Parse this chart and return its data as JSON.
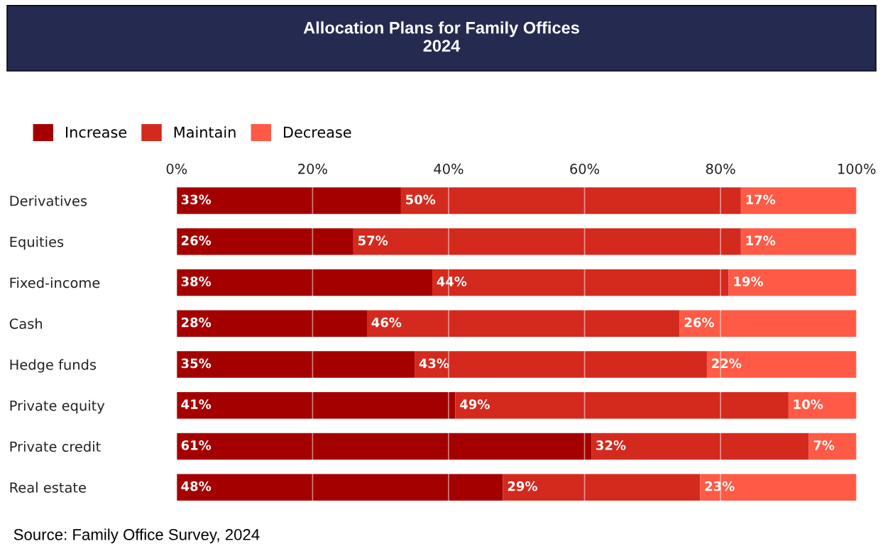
{
  "chart_data": {
    "type": "bar",
    "orientation": "horizontal",
    "stacked": true,
    "title": "Allocation Plans for Family Offices\n2024",
    "categories": [
      "Derivatives",
      "Equities",
      "Fixed-income",
      "Cash",
      "Hedge funds",
      "Private equity",
      "Private credit",
      "Real estate"
    ],
    "series": [
      {
        "name": "Increase",
        "color": "#a50000",
        "values": [
          33,
          26,
          37.6,
          28,
          35,
          41,
          61,
          48
        ],
        "value_labels": [
          "33%",
          "26%",
          "38%",
          "28%",
          "35%",
          "41%",
          "61%",
          "48%"
        ]
      },
      {
        "name": "Maintain",
        "color": "#d42a1e",
        "values": [
          50,
          57,
          43.6,
          46,
          43,
          49,
          32,
          29
        ],
        "value_labels": [
          "50%",
          "57%",
          "44%",
          "46%",
          "43%",
          "49%",
          "32%",
          "29%"
        ]
      },
      {
        "name": "Decrease",
        "color": "#ff5a45",
        "values": [
          17,
          17,
          18.8,
          26,
          22,
          10,
          7,
          23
        ],
        "value_labels": [
          "17%",
          "17%",
          "19%",
          "26%",
          "22%",
          "10%",
          "7%",
          "23%"
        ]
      }
    ],
    "xlim": [
      0,
      100
    ],
    "xticks": [
      {
        "value": 0,
        "label": "0%"
      },
      {
        "value": 20,
        "label": "20%"
      },
      {
        "value": 40,
        "label": "40%"
      },
      {
        "value": 60,
        "label": "60%"
      },
      {
        "value": 80,
        "label": "80%"
      },
      {
        "value": 100,
        "label": "100%"
      }
    ],
    "grid": "x",
    "legend": "top left",
    "annotations": [
      "Source: Family Office Survey, 2024"
    ]
  }
}
